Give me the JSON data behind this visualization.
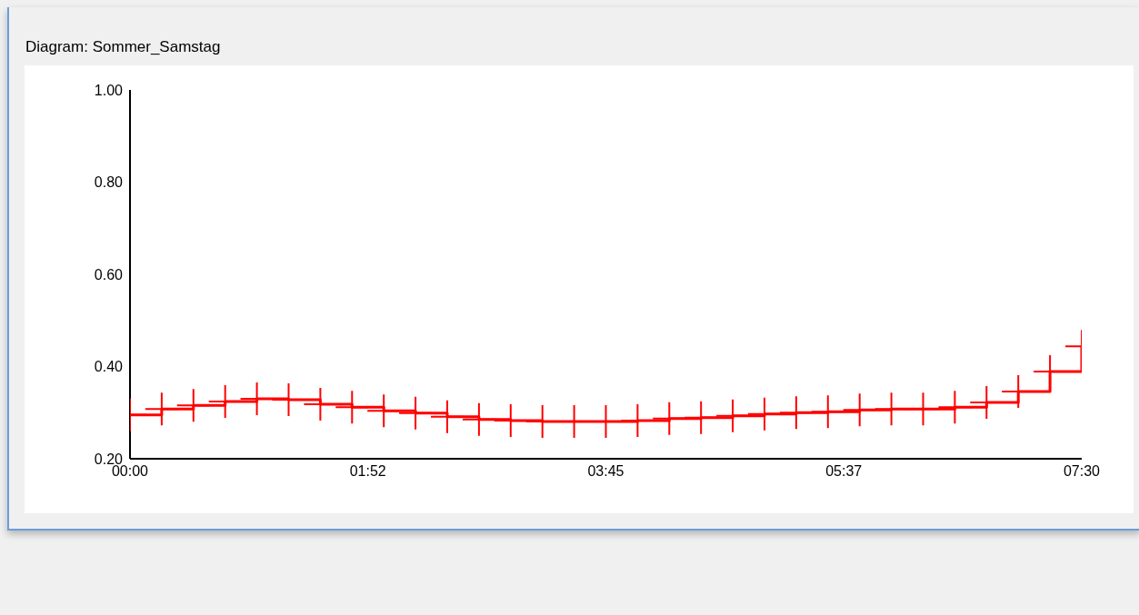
{
  "chart_data": {
    "type": "step",
    "title": "Diagram: Sommer_Samstag",
    "x": [
      0,
      0.25,
      0.5,
      0.75,
      1,
      1.25,
      1.5,
      1.75,
      2,
      2.25,
      2.5,
      2.75,
      3,
      3.25,
      3.5,
      3.75,
      4,
      4.25,
      4.5,
      4.75,
      5,
      5.25,
      5.5,
      5.75,
      6,
      6.25,
      6.5,
      6.75,
      7,
      7.25,
      7.5
    ],
    "series": [
      {
        "color": "#ff0000",
        "values": [
          0.295,
          0.308,
          0.316,
          0.324,
          0.33,
          0.328,
          0.318,
          0.312,
          0.304,
          0.299,
          0.291,
          0.285,
          0.283,
          0.281,
          0.281,
          0.281,
          0.283,
          0.287,
          0.289,
          0.293,
          0.297,
          0.3,
          0.302,
          0.306,
          0.308,
          0.308,
          0.312,
          0.322,
          0.346,
          0.389,
          0.444
        ]
      }
    ],
    "xlim": [
      0,
      7.5
    ],
    "xticks": [
      {
        "value": 0,
        "label": "00:00"
      },
      {
        "value": 1.875,
        "label": "01:52"
      },
      {
        "value": 3.75,
        "label": "03:45"
      },
      {
        "value": 5.625,
        "label": "05:37"
      },
      {
        "value": 7.5,
        "label": "07:30"
      }
    ],
    "ylim": [
      0.2,
      1.0
    ],
    "yticks": [
      {
        "value": 0.2,
        "label": "0.20"
      },
      {
        "value": 0.4,
        "label": "0.40"
      },
      {
        "value": 0.6,
        "label": "0.60"
      },
      {
        "value": 0.8,
        "label": "0.80"
      },
      {
        "value": 1.0,
        "label": "1.00"
      }
    ],
    "grid": false,
    "legend": false,
    "marker": "cross",
    "line_style": "solid"
  }
}
